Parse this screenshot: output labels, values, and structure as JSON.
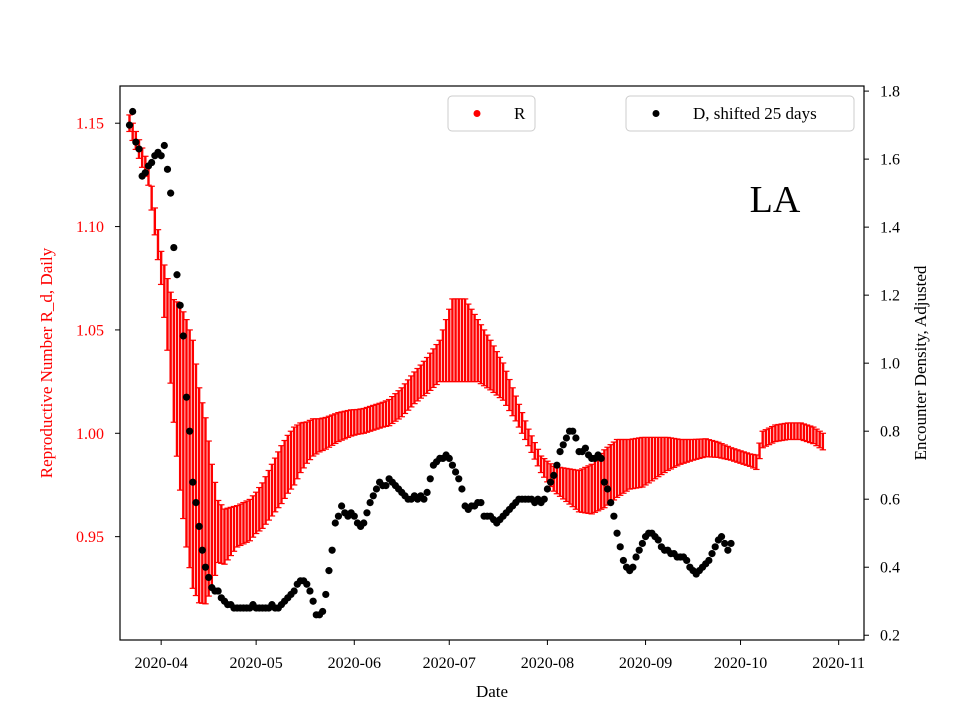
{
  "chart_data": {
    "type": "errorbar-scatter",
    "state_label": "LA",
    "colors": {
      "r_series": "#ff0000",
      "d_series": "#000000",
      "axis": "#000000",
      "left_axis_text": "#ff0000"
    },
    "x_axis": {
      "label": "Date",
      "range_days": [
        -13,
        222
      ],
      "ticks": [
        {
          "label": "2020-04",
          "day": 0
        },
        {
          "label": "2020-05",
          "day": 30
        },
        {
          "label": "2020-06",
          "day": 61
        },
        {
          "label": "2020-07",
          "day": 91
        },
        {
          "label": "2020-08",
          "day": 122
        },
        {
          "label": "2020-09",
          "day": 153
        },
        {
          "label": "2020-10",
          "day": 183
        },
        {
          "label": "2020-11",
          "day": 214
        }
      ]
    },
    "left_axis": {
      "label": "Reproductive Number R_d, Daily",
      "ylim": [
        0.9,
        1.168
      ],
      "ticks": [
        "0.95",
        "1.00",
        "1.05",
        "1.10",
        "1.15"
      ]
    },
    "right_axis": {
      "label": "Encounter Density, Adjusted",
      "ylim": [
        0.186,
        1.815
      ],
      "ticks": [
        "0.2",
        "0.4",
        "0.6",
        "0.8",
        "1.0",
        "1.2",
        "1.4",
        "1.6",
        "1.8"
      ]
    },
    "legend": [
      {
        "name": "R",
        "placement": "top-center"
      },
      {
        "name": "D, shifted 25 days",
        "placement": "top-right"
      }
    ],
    "series_r": {
      "name": "R",
      "start_day": -10,
      "end_day": 209,
      "center_anchors": [
        [
          -10,
          1.15
        ],
        [
          -4,
          1.125
        ],
        [
          0,
          1.08
        ],
        [
          4,
          1.035
        ],
        [
          8,
          1.0
        ],
        [
          12,
          0.97
        ],
        [
          16,
          0.955
        ],
        [
          20,
          0.95
        ],
        [
          24,
          0.955
        ],
        [
          28,
          0.958
        ],
        [
          32,
          0.965
        ],
        [
          36,
          0.975
        ],
        [
          40,
          0.985
        ],
        [
          44,
          0.993
        ],
        [
          48,
          0.998
        ],
        [
          52,
          1.0
        ],
        [
          56,
          1.003
        ],
        [
          60,
          1.005
        ],
        [
          64,
          1.006
        ],
        [
          68,
          1.008
        ],
        [
          72,
          1.01
        ],
        [
          76,
          1.015
        ],
        [
          80,
          1.022
        ],
        [
          84,
          1.028
        ],
        [
          88,
          1.035
        ],
        [
          92,
          1.045
        ],
        [
          96,
          1.045
        ],
        [
          100,
          1.04
        ],
        [
          104,
          1.033
        ],
        [
          108,
          1.025
        ],
        [
          112,
          1.012
        ],
        [
          116,
          0.998
        ],
        [
          120,
          0.985
        ],
        [
          124,
          0.978
        ],
        [
          128,
          0.975
        ],
        [
          132,
          0.972
        ],
        [
          136,
          0.973
        ],
        [
          140,
          0.978
        ],
        [
          144,
          0.983
        ],
        [
          148,
          0.985
        ],
        [
          152,
          0.986
        ],
        [
          156,
          0.988
        ],
        [
          160,
          0.99
        ],
        [
          164,
          0.991
        ],
        [
          168,
          0.992
        ],
        [
          172,
          0.993
        ],
        [
          176,
          0.992
        ],
        [
          180,
          0.99
        ],
        [
          184,
          0.988
        ],
        [
          188,
          0.986
        ],
        [
          190,
          0.997
        ],
        [
          194,
          1.0
        ],
        [
          198,
          1.001
        ],
        [
          202,
          1.001
        ],
        [
          206,
          0.999
        ],
        [
          209,
          0.996
        ]
      ],
      "halfwidth_anchors": [
        [
          -10,
          0.004
        ],
        [
          -4,
          0.005
        ],
        [
          0,
          0.008
        ],
        [
          3,
          0.022
        ],
        [
          6,
          0.045
        ],
        [
          8,
          0.055
        ],
        [
          10,
          0.06
        ],
        [
          12,
          0.052
        ],
        [
          14,
          0.045
        ],
        [
          16,
          0.03
        ],
        [
          18,
          0.015
        ],
        [
          24,
          0.01
        ],
        [
          30,
          0.01
        ],
        [
          34,
          0.012
        ],
        [
          38,
          0.014
        ],
        [
          42,
          0.014
        ],
        [
          46,
          0.01
        ],
        [
          50,
          0.008
        ],
        [
          56,
          0.007
        ],
        [
          62,
          0.006
        ],
        [
          70,
          0.006
        ],
        [
          76,
          0.007
        ],
        [
          82,
          0.008
        ],
        [
          88,
          0.01
        ],
        [
          92,
          0.02
        ],
        [
          96,
          0.02
        ],
        [
          100,
          0.015
        ],
        [
          104,
          0.012
        ],
        [
          108,
          0.009
        ],
        [
          112,
          0.006
        ],
        [
          116,
          0.004
        ],
        [
          120,
          0.004
        ],
        [
          124,
          0.006
        ],
        [
          128,
          0.008
        ],
        [
          132,
          0.01
        ],
        [
          136,
          0.012
        ],
        [
          140,
          0.014
        ],
        [
          144,
          0.014
        ],
        [
          148,
          0.012
        ],
        [
          152,
          0.012
        ],
        [
          156,
          0.01
        ],
        [
          160,
          0.008
        ],
        [
          164,
          0.006
        ],
        [
          168,
          0.005
        ],
        [
          174,
          0.004
        ],
        [
          180,
          0.003
        ],
        [
          186,
          0.003
        ],
        [
          190,
          0.004
        ],
        [
          196,
          0.004
        ],
        [
          202,
          0.004
        ],
        [
          209,
          0.004
        ]
      ]
    },
    "series_d": {
      "name": "D, shifted 25 days",
      "points": [
        [
          -10,
          1.7
        ],
        [
          -9,
          1.74
        ],
        [
          -8,
          1.65
        ],
        [
          -7,
          1.63
        ],
        [
          -6,
          1.55
        ],
        [
          -5,
          1.56
        ],
        [
          -4,
          1.58
        ],
        [
          -3,
          1.59
        ],
        [
          -2,
          1.61
        ],
        [
          -1,
          1.62
        ],
        [
          0,
          1.61
        ],
        [
          1,
          1.64
        ],
        [
          2,
          1.57
        ],
        [
          3,
          1.5
        ],
        [
          4,
          1.34
        ],
        [
          5,
          1.26
        ],
        [
          6,
          1.17
        ],
        [
          7,
          1.08
        ],
        [
          8,
          0.9
        ],
        [
          9,
          0.8
        ],
        [
          10,
          0.65
        ],
        [
          11,
          0.59
        ],
        [
          12,
          0.52
        ],
        [
          13,
          0.45
        ],
        [
          14,
          0.4
        ],
        [
          15,
          0.37
        ],
        [
          16,
          0.34
        ],
        [
          17,
          0.33
        ],
        [
          18,
          0.33
        ],
        [
          19,
          0.31
        ],
        [
          20,
          0.3
        ],
        [
          21,
          0.29
        ],
        [
          22,
          0.29
        ],
        [
          23,
          0.28
        ],
        [
          24,
          0.28
        ],
        [
          25,
          0.28
        ],
        [
          26,
          0.28
        ],
        [
          27,
          0.28
        ],
        [
          28,
          0.28
        ],
        [
          29,
          0.29
        ],
        [
          30,
          0.28
        ],
        [
          31,
          0.28
        ],
        [
          32,
          0.28
        ],
        [
          33,
          0.28
        ],
        [
          34,
          0.28
        ],
        [
          35,
          0.29
        ],
        [
          36,
          0.28
        ],
        [
          37,
          0.28
        ],
        [
          38,
          0.29
        ],
        [
          39,
          0.3
        ],
        [
          40,
          0.31
        ],
        [
          41,
          0.32
        ],
        [
          42,
          0.33
        ],
        [
          43,
          0.35
        ],
        [
          44,
          0.36
        ],
        [
          45,
          0.36
        ],
        [
          46,
          0.35
        ],
        [
          47,
          0.33
        ],
        [
          48,
          0.3
        ],
        [
          49,
          0.26
        ],
        [
          50,
          0.26
        ],
        [
          51,
          0.27
        ],
        [
          52,
          0.32
        ],
        [
          53,
          0.39
        ],
        [
          54,
          0.45
        ],
        [
          55,
          0.53
        ],
        [
          56,
          0.55
        ],
        [
          57,
          0.58
        ],
        [
          58,
          0.56
        ],
        [
          59,
          0.55
        ],
        [
          60,
          0.56
        ],
        [
          61,
          0.55
        ],
        [
          62,
          0.53
        ],
        [
          63,
          0.52
        ],
        [
          64,
          0.53
        ],
        [
          65,
          0.56
        ],
        [
          66,
          0.59
        ],
        [
          67,
          0.61
        ],
        [
          68,
          0.63
        ],
        [
          69,
          0.65
        ],
        [
          70,
          0.64
        ],
        [
          71,
          0.64
        ],
        [
          72,
          0.66
        ],
        [
          73,
          0.65
        ],
        [
          74,
          0.64
        ],
        [
          75,
          0.63
        ],
        [
          76,
          0.62
        ],
        [
          77,
          0.61
        ],
        [
          78,
          0.6
        ],
        [
          79,
          0.6
        ],
        [
          80,
          0.61
        ],
        [
          81,
          0.6
        ],
        [
          82,
          0.61
        ],
        [
          83,
          0.6
        ],
        [
          84,
          0.62
        ],
        [
          85,
          0.66
        ],
        [
          86,
          0.7
        ],
        [
          87,
          0.71
        ],
        [
          88,
          0.72
        ],
        [
          89,
          0.72
        ],
        [
          90,
          0.73
        ],
        [
          91,
          0.72
        ],
        [
          92,
          0.7
        ],
        [
          93,
          0.68
        ],
        [
          94,
          0.66
        ],
        [
          95,
          0.63
        ],
        [
          96,
          0.58
        ],
        [
          97,
          0.57
        ],
        [
          98,
          0.58
        ],
        [
          99,
          0.58
        ],
        [
          100,
          0.59
        ],
        [
          101,
          0.59
        ],
        [
          102,
          0.55
        ],
        [
          103,
          0.55
        ],
        [
          104,
          0.55
        ],
        [
          105,
          0.54
        ],
        [
          106,
          0.53
        ],
        [
          107,
          0.54
        ],
        [
          108,
          0.55
        ],
        [
          109,
          0.56
        ],
        [
          110,
          0.57
        ],
        [
          111,
          0.58
        ],
        [
          112,
          0.59
        ],
        [
          113,
          0.6
        ],
        [
          114,
          0.6
        ],
        [
          115,
          0.6
        ],
        [
          116,
          0.6
        ],
        [
          117,
          0.6
        ],
        [
          118,
          0.59
        ],
        [
          119,
          0.6
        ],
        [
          120,
          0.59
        ],
        [
          121,
          0.6
        ],
        [
          122,
          0.63
        ],
        [
          123,
          0.65
        ],
        [
          124,
          0.67
        ],
        [
          125,
          0.7
        ],
        [
          126,
          0.74
        ],
        [
          127,
          0.76
        ],
        [
          128,
          0.78
        ],
        [
          129,
          0.8
        ],
        [
          130,
          0.8
        ],
        [
          131,
          0.78
        ],
        [
          132,
          0.74
        ],
        [
          133,
          0.74
        ],
        [
          134,
          0.75
        ],
        [
          135,
          0.73
        ],
        [
          136,
          0.72
        ],
        [
          137,
          0.72
        ],
        [
          138,
          0.73
        ],
        [
          139,
          0.72
        ],
        [
          140,
          0.65
        ],
        [
          141,
          0.63
        ],
        [
          142,
          0.59
        ],
        [
          143,
          0.55
        ],
        [
          144,
          0.5
        ],
        [
          145,
          0.46
        ],
        [
          146,
          0.42
        ],
        [
          147,
          0.4
        ],
        [
          148,
          0.39
        ],
        [
          149,
          0.4
        ],
        [
          150,
          0.43
        ],
        [
          151,
          0.45
        ],
        [
          152,
          0.47
        ],
        [
          153,
          0.49
        ],
        [
          154,
          0.5
        ],
        [
          155,
          0.5
        ],
        [
          156,
          0.49
        ],
        [
          157,
          0.48
        ],
        [
          158,
          0.46
        ],
        [
          159,
          0.45
        ],
        [
          160,
          0.45
        ],
        [
          161,
          0.44
        ],
        [
          162,
          0.44
        ],
        [
          163,
          0.43
        ],
        [
          164,
          0.43
        ],
        [
          165,
          0.43
        ],
        [
          166,
          0.42
        ],
        [
          167,
          0.4
        ],
        [
          168,
          0.39
        ],
        [
          169,
          0.38
        ],
        [
          170,
          0.39
        ],
        [
          171,
          0.4
        ],
        [
          172,
          0.41
        ],
        [
          173,
          0.42
        ],
        [
          174,
          0.44
        ],
        [
          175,
          0.46
        ],
        [
          176,
          0.48
        ],
        [
          177,
          0.49
        ],
        [
          178,
          0.47
        ],
        [
          179,
          0.45
        ],
        [
          180,
          0.47
        ]
      ]
    }
  }
}
